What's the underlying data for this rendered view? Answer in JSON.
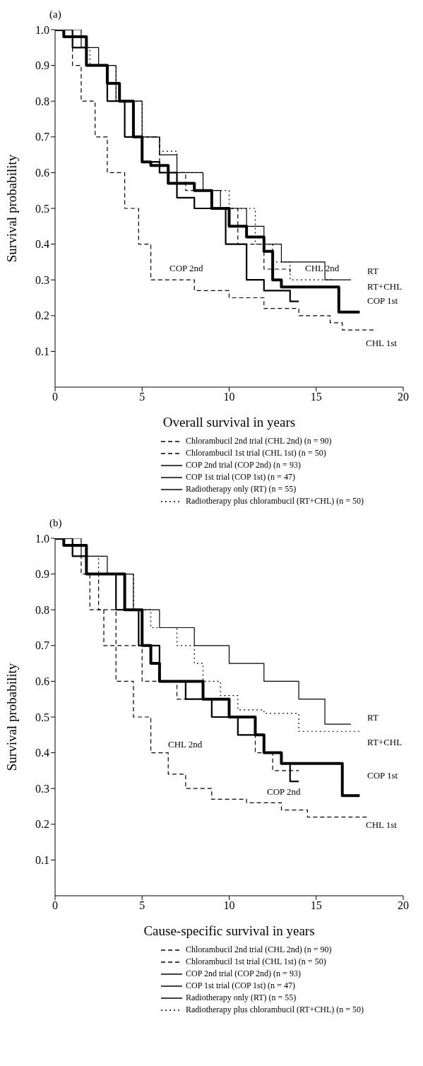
{
  "chart_data": [
    {
      "type": "step",
      "title": "(a)",
      "xlabel": "Overall survival in years",
      "ylabel": "Survival probability",
      "xlim": [
        0,
        20
      ],
      "xticks": [
        0,
        5,
        10,
        15,
        20
      ],
      "ylim": [
        0,
        1.0
      ],
      "yticks": [
        0.1,
        0.2,
        0.3,
        0.4,
        0.5,
        0.6,
        0.7,
        0.8,
        0.9,
        "1.0"
      ],
      "legend": "bottom",
      "grid": false,
      "series": [
        {
          "name": "Chlorambucil 2nd trial (CHL 2nd) (n = 90)",
          "color": "#000000",
          "line_style": "dashed",
          "x": [
            0,
            1,
            1.8,
            3,
            4.5,
            6,
            7.5,
            9,
            10.5,
            12,
            13.5
          ],
          "values": [
            1.0,
            0.95,
            0.9,
            0.8,
            0.7,
            0.6,
            0.55,
            0.5,
            0.4,
            0.33,
            0.32
          ]
        },
        {
          "name": "Chlorambucil 1st trial (CHL 1st) (n = 50)",
          "color": "#000000",
          "line_style": "dashed",
          "x": [
            0,
            1,
            1.5,
            2.3,
            3,
            4,
            4.8,
            5.5,
            8,
            10,
            12,
            14,
            15.8,
            16.5,
            18.3
          ],
          "values": [
            1.0,
            0.9,
            0.8,
            0.7,
            0.6,
            0.5,
            0.4,
            0.3,
            0.27,
            0.25,
            0.22,
            0.2,
            0.18,
            0.16,
            0.16
          ]
        },
        {
          "name": "COP 2nd trial (COP 2nd) (n = 93)",
          "color": "#000000",
          "line_style": "solid",
          "x": [
            0,
            1,
            1.8,
            3,
            4,
            5,
            6,
            7,
            8,
            9.8,
            11,
            12,
            13.5,
            14
          ],
          "values": [
            1.0,
            0.95,
            0.9,
            0.8,
            0.7,
            0.63,
            0.6,
            0.53,
            0.5,
            0.4,
            0.3,
            0.27,
            0.24,
            0.24
          ]
        },
        {
          "name": "COP 1st trial (COP 1st) (n = 47)",
          "color": "#000000",
          "line_style": "solid",
          "x": [
            0,
            0.5,
            1.8,
            2.2,
            3,
            3.7,
            4.5,
            5,
            5.5,
            6.5,
            8,
            9,
            10,
            11,
            12,
            12.5,
            13,
            16.3,
            17.5
          ],
          "values": [
            1.0,
            0.98,
            0.9,
            0.9,
            0.85,
            0.8,
            0.7,
            0.63,
            0.62,
            0.57,
            0.55,
            0.5,
            0.45,
            0.42,
            0.38,
            0.3,
            0.28,
            0.21,
            0.21
          ]
        },
        {
          "name": "Radiotherapy only (RT) (n = 55)",
          "color": "#000000",
          "line_style": "solid",
          "x": [
            0,
            1.5,
            2.5,
            3.5,
            5,
            6,
            7,
            8.5,
            9.5,
            11,
            12,
            13,
            15.5,
            17
          ],
          "values": [
            1.0,
            0.95,
            0.9,
            0.8,
            0.7,
            0.65,
            0.6,
            0.55,
            0.5,
            0.45,
            0.4,
            0.35,
            0.3,
            0.3
          ]
        },
        {
          "name": "Radiotherapy plus chlorambucil (RT+CHL) (n = 50)",
          "color": "#000000",
          "line_style": "dotted",
          "x": [
            0,
            1,
            2,
            3.5,
            5,
            6,
            7,
            8.5,
            10,
            11.5,
            12.5,
            13.5,
            16
          ],
          "values": [
            1.0,
            0.95,
            0.9,
            0.8,
            0.7,
            0.66,
            0.6,
            0.55,
            0.5,
            0.4,
            0.35,
            0.3,
            0.3
          ]
        }
      ],
      "annotations": [
        "RT",
        "RT+CHL",
        "COP 1st",
        "CHL 1st",
        "COP 2nd",
        "CHL 2nd"
      ]
    },
    {
      "type": "step",
      "title": "(b)",
      "xlabel": "Cause-specific survival in years",
      "ylabel": "Survival probability",
      "xlim": [
        0,
        20
      ],
      "xticks": [
        0,
        5,
        10,
        15,
        20
      ],
      "ylim": [
        0,
        1.0
      ],
      "yticks": [
        0.1,
        0.2,
        0.3,
        0.4,
        0.5,
        0.6,
        0.7,
        0.8,
        0.9,
        "1.0"
      ],
      "legend": "bottom",
      "grid": false,
      "series": [
        {
          "name": "Chlorambucil 2nd trial (CHL 2nd) (n = 90)",
          "color": "#000000",
          "line_style": "dashed",
          "x": [
            0,
            1,
            1.8,
            2.5,
            3.5,
            5,
            7,
            9,
            10.5,
            11.5,
            12.5,
            14
          ],
          "values": [
            1.0,
            0.95,
            0.9,
            0.8,
            0.7,
            0.6,
            0.55,
            0.5,
            0.45,
            0.4,
            0.35,
            0.35
          ]
        },
        {
          "name": "Chlorambucil 1st trial (CHL 1st) (n = 50)",
          "color": "#000000",
          "line_style": "dashed",
          "x": [
            0,
            1,
            1.5,
            2,
            2.8,
            3.5,
            4.5,
            5.5,
            6.5,
            7.5,
            9,
            11,
            13,
            14.5,
            18
          ],
          "values": [
            1.0,
            0.95,
            0.9,
            0.8,
            0.7,
            0.6,
            0.5,
            0.4,
            0.34,
            0.3,
            0.27,
            0.26,
            0.24,
            0.22,
            0.22
          ]
        },
        {
          "name": "COP 2nd trial (COP 2nd) (n = 93)",
          "color": "#000000",
          "line_style": "solid",
          "x": [
            0,
            1,
            1.8,
            3.5,
            4.8,
            6,
            7.5,
            9,
            10.5,
            12,
            13,
            13.5,
            14
          ],
          "values": [
            1.0,
            0.95,
            0.9,
            0.8,
            0.7,
            0.6,
            0.55,
            0.5,
            0.45,
            0.4,
            0.37,
            0.32,
            0.32
          ]
        },
        {
          "name": "COP 1st trial (COP 1st) (n = 47)",
          "color": "#000000",
          "line_style": "solid",
          "x": [
            0,
            0.5,
            1.8,
            2.5,
            4,
            5,
            5.5,
            6,
            8,
            8.5,
            10,
            11.5,
            12,
            13,
            16.5,
            17.5
          ],
          "values": [
            1.0,
            0.98,
            0.9,
            0.9,
            0.8,
            0.7,
            0.65,
            0.6,
            0.6,
            0.55,
            0.5,
            0.45,
            0.4,
            0.37,
            0.28,
            0.28
          ]
        },
        {
          "name": "Radiotherapy only (RT) (n = 55)",
          "color": "#000000",
          "line_style": "solid",
          "x": [
            0,
            1.5,
            3,
            4.5,
            6,
            8,
            10,
            12,
            14,
            15.5,
            17
          ],
          "values": [
            1.0,
            0.95,
            0.9,
            0.8,
            0.75,
            0.7,
            0.65,
            0.6,
            0.55,
            0.48,
            0.48
          ]
        },
        {
          "name": "Radiotherapy plus chlorambucil (RT+CHL) (n = 50)",
          "color": "#000000",
          "line_style": "dotted",
          "x": [
            0,
            1,
            2.5,
            4.5,
            5.5,
            7,
            8,
            8.5,
            9.5,
            10.5,
            12,
            14,
            17.5
          ],
          "values": [
            1.0,
            0.95,
            0.9,
            0.8,
            0.75,
            0.7,
            0.65,
            0.6,
            0.56,
            0.52,
            0.51,
            0.46,
            0.46
          ]
        }
      ],
      "annotations": [
        "RT",
        "RT+CHL",
        "COP 1st",
        "CHL 1st",
        "COP 2nd",
        "CHL 2nd"
      ]
    }
  ]
}
